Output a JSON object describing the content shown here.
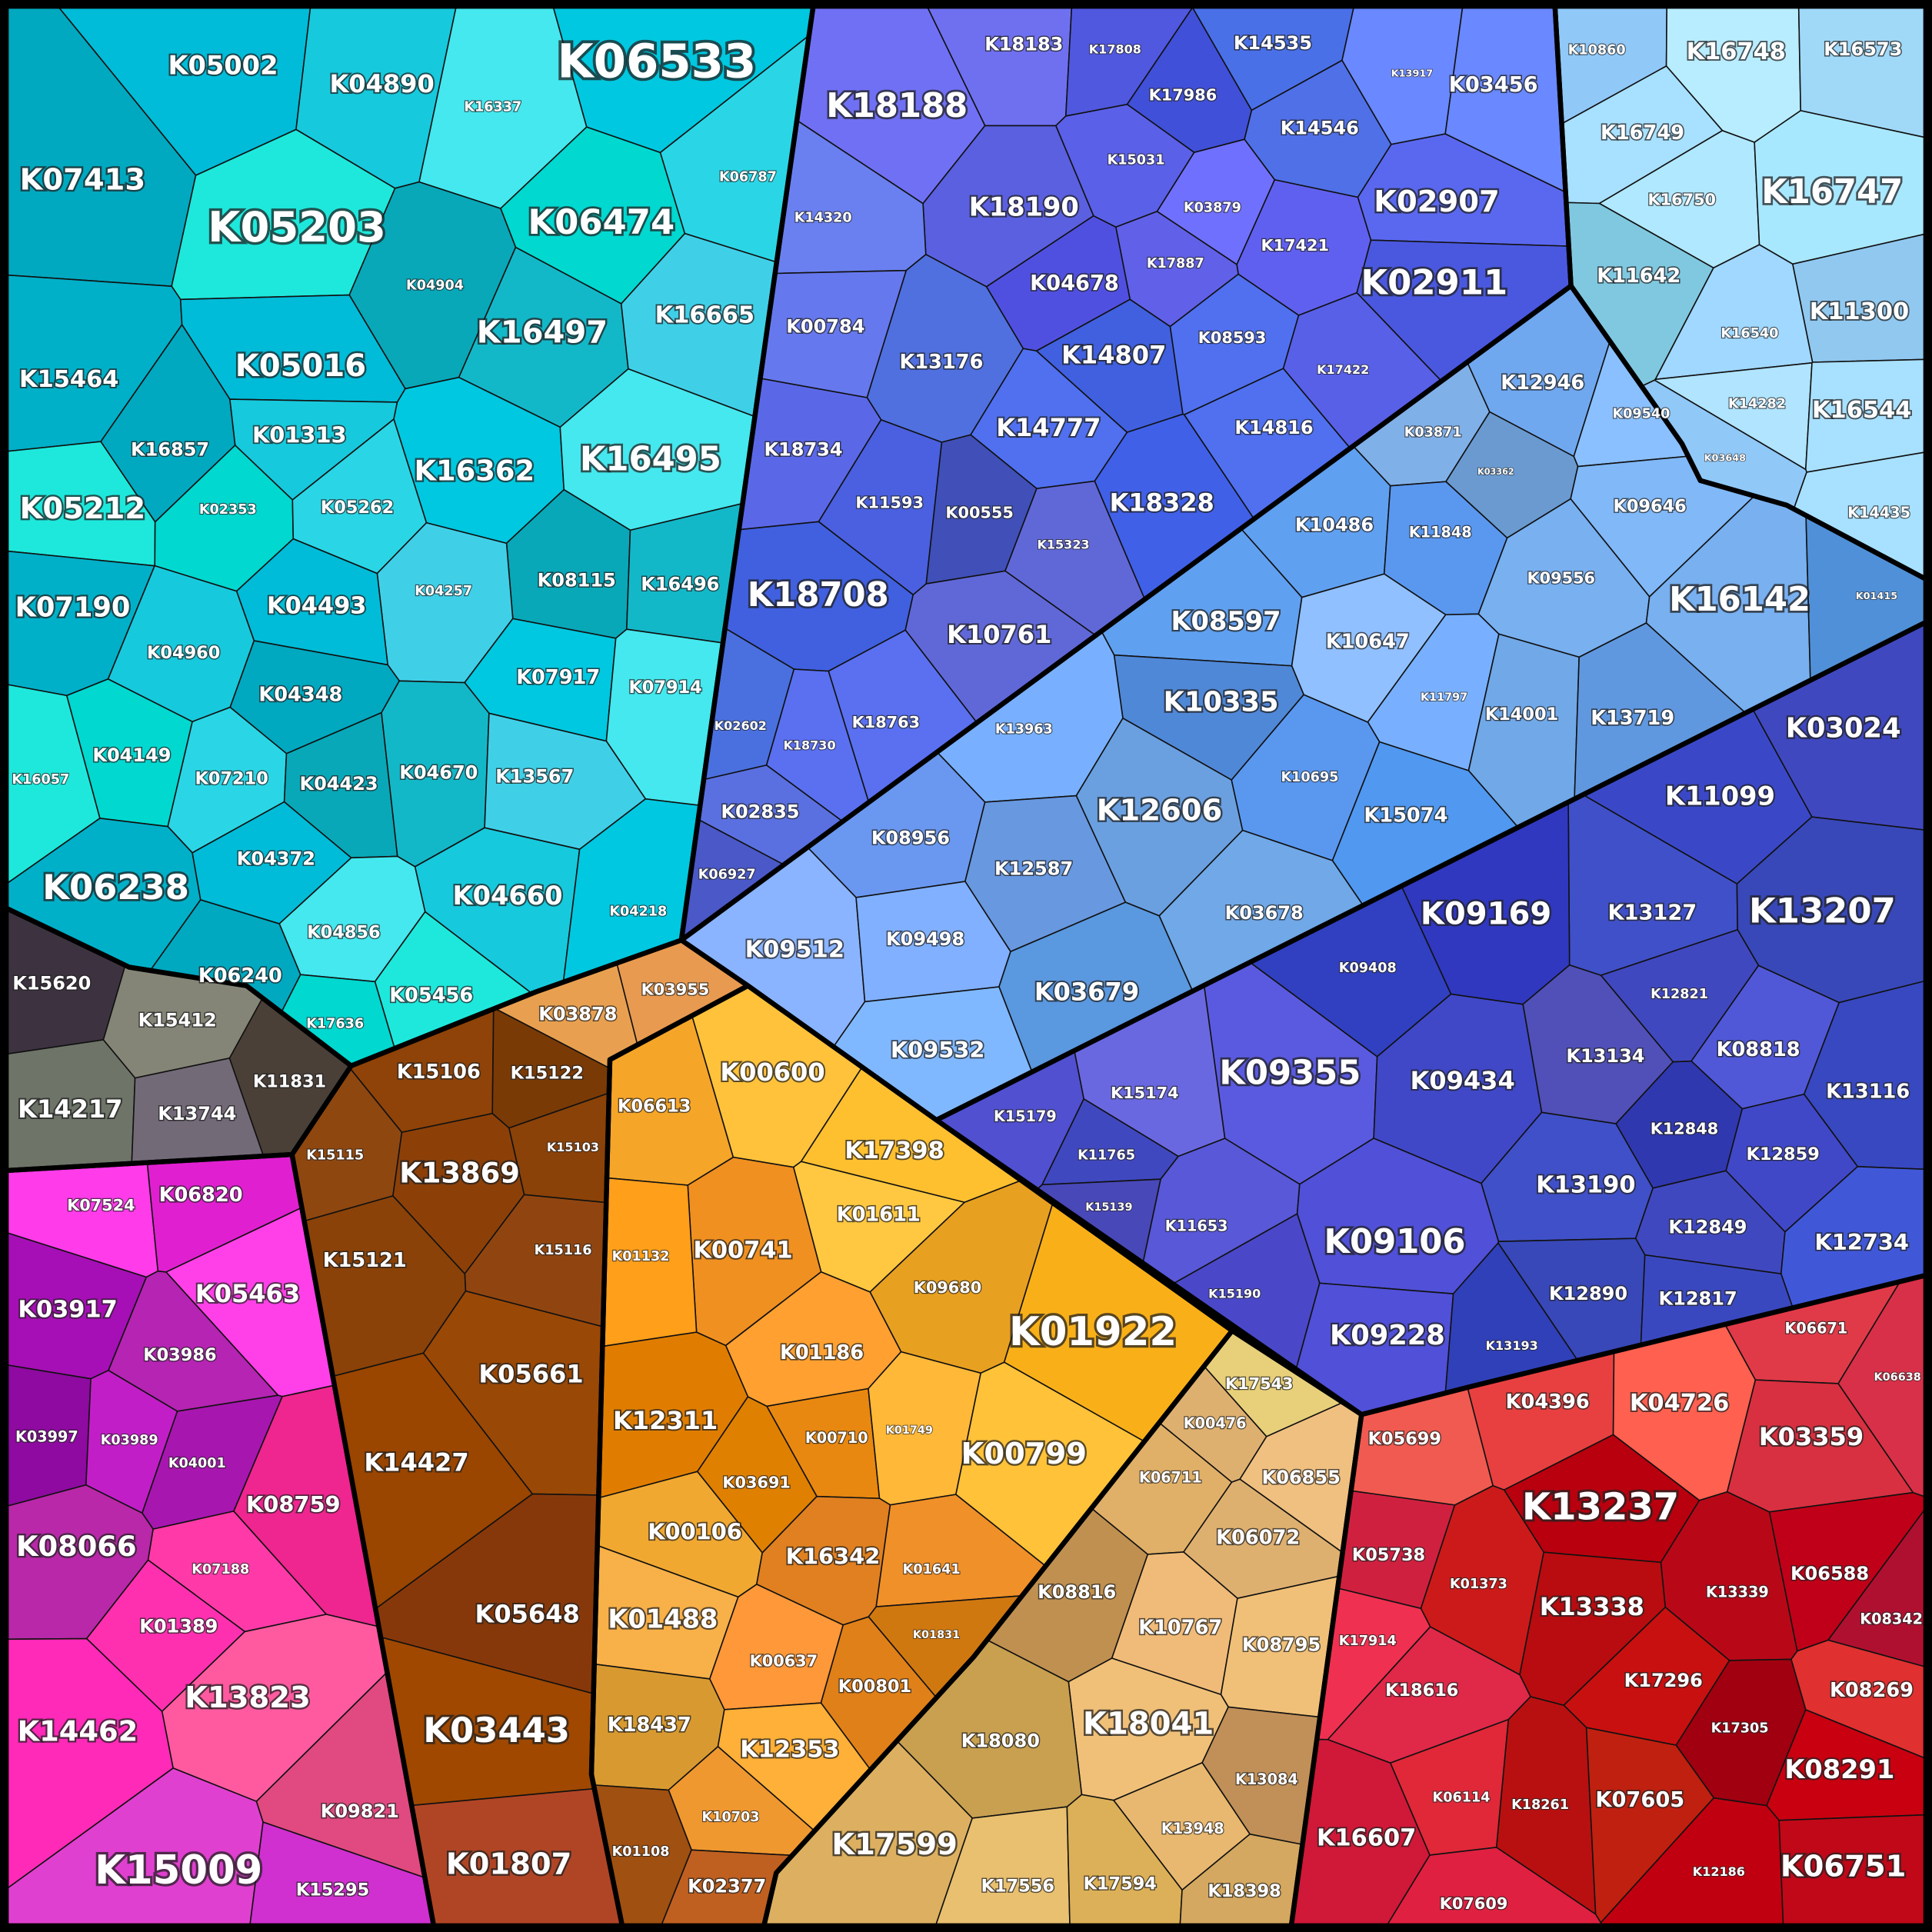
{
  "groups": [
    {
      "cells": [
        "K05002",
        "K04890",
        "K06533",
        "K16337",
        "K07413",
        "K05203",
        "K06474",
        "K06787",
        "K04904",
        "K16497",
        "K16665",
        "K15464",
        "K05016",
        "K01313",
        "K16362",
        "K16495",
        "K16857",
        "K05212",
        "K02353",
        "K05262",
        "K08115",
        "K16496",
        "K04257",
        "K07190",
        "K04493",
        "K04960",
        "K07917",
        "K07914",
        "K04348",
        "K16057",
        "K04149",
        "K07210",
        "K04423",
        "K04670",
        "K13567",
        "K06238",
        "K04372",
        "K04660",
        "K04218",
        "K04856",
        "K06240",
        "K05456",
        "K17636"
      ]
    },
    {
      "cells": [
        "K15620",
        "K15412",
        "K14217",
        "K13744",
        "K11831"
      ]
    },
    {
      "cells": [
        "K07524",
        "K06820",
        "K05463",
        "K03917",
        "K03986",
        "K03997",
        "K03989",
        "K04001",
        "K08759",
        "K08066",
        "K07188",
        "K01389",
        "K13823",
        "K14462",
        "K09821",
        "K15009",
        "K15295"
      ]
    },
    {
      "cells": [
        "K03878",
        "K03955",
        "K15106",
        "K15122",
        "K15103",
        "K15115",
        "K13869",
        "K15116",
        "K15121",
        "K05661",
        "K14427",
        "K05648",
        "K03443",
        "K01807"
      ]
    },
    {
      "cells": [
        "K06613",
        "K00600",
        "K17398",
        "K01611",
        "K00741",
        "K01132",
        "K09680",
        "K01922",
        "K01186",
        "K12311",
        "K00710",
        "K01749",
        "K00799",
        "K03691",
        "K00106",
        "K16342",
        "K01641",
        "K01488",
        "K01831",
        "K00637",
        "K00801",
        "K18437",
        "K12353",
        "K10703",
        "K01108",
        "K02377"
      ]
    },
    {
      "cells": [
        "K17543",
        "K00476",
        "K06711",
        "K06855",
        "K06072",
        "K08816",
        "K10767",
        "K08795",
        "K18041",
        "K18080",
        "K13084",
        "K17599",
        "K13948",
        "K17556",
        "K17594",
        "K18398"
      ]
    },
    {
      "cells": [
        "K05699",
        "K04396",
        "K04726",
        "K06671",
        "K06638",
        "K03359",
        "K13237",
        "K05738",
        "K01373",
        "K06588",
        "K13338",
        "K13339",
        "K08342",
        "K17914",
        "K17296",
        "K18616",
        "K08269",
        "K17305",
        "K08291",
        "K18261",
        "K07605",
        "K06114",
        "K16607",
        "K12186",
        "K06751",
        "K07609"
      ]
    },
    {
      "cells": [
        "K18183",
        "K17808",
        "K14535",
        "K13917",
        "K03456",
        "K17986",
        "K18188",
        "K14546",
        "K15031",
        "K03879",
        "K18190",
        "K02907",
        "K14320",
        "K17421",
        "K17887",
        "K02911",
        "K04678",
        "K00784",
        "K13176",
        "K14807",
        "K08593",
        "K17422",
        "K14777",
        "K14816",
        "K18734",
        "K11593",
        "K00555",
        "K18328",
        "K15323",
        "K18708",
        "K10761",
        "K02602",
        "K18763",
        "K18730",
        "K02835",
        "K06927"
      ]
    },
    {
      "cells": [
        "K03871",
        "K12946",
        "K09540",
        "K03362",
        "K10486",
        "K11848",
        "K09646",
        "K09556",
        "K16142",
        "K01415",
        "K08597",
        "K10647",
        "K11797",
        "K10335",
        "K14001",
        "K13719",
        "K13963",
        "K12606",
        "K10695",
        "K15074",
        "K08956",
        "K12587",
        "K03678",
        "K09512",
        "K09498",
        "K03679",
        "K09532"
      ]
    },
    {
      "cells": [
        "K10860",
        "K16748",
        "K16573",
        "K16749",
        "K16750",
        "K16747",
        "K11642",
        "K11300",
        "K16540",
        "K14282",
        "K16544",
        "K03648",
        "K14435"
      ]
    },
    {
      "cells": [
        "K03024",
        "K11099",
        "K13127",
        "K13207",
        "K09169",
        "K09408",
        "K12821",
        "K08818",
        "K09355",
        "K13134",
        "K09434",
        "K13116",
        "K15174",
        "K15179",
        "K12848",
        "K12859",
        "K11765",
        "K13190",
        "K15139",
        "K11653",
        "K12849",
        "K12734",
        "K09106",
        "K15190",
        "K12890",
        "K12817",
        "K09228",
        "K13193"
      ]
    }
  ]
}
